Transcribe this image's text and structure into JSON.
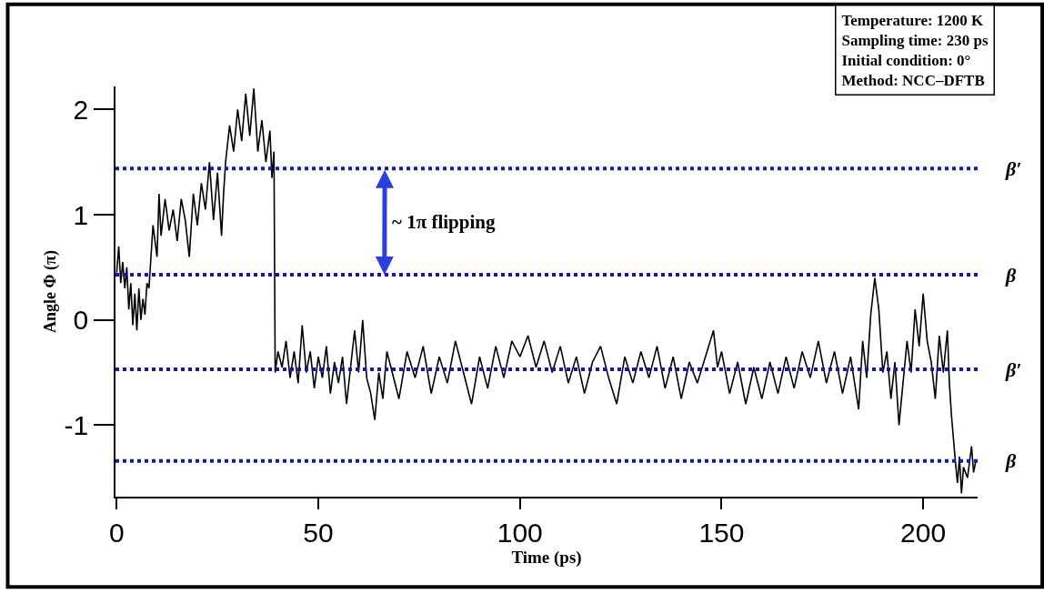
{
  "chart_data": {
    "type": "line",
    "xlabel": "Time (ps)",
    "ylabel": "Angle Φ (π)",
    "xlim": [
      -0.3,
      213.5
    ],
    "ylim": [
      -1.68,
      2.22
    ],
    "xticks": [
      0,
      50,
      100,
      150,
      200
    ],
    "yticks": [
      -1,
      0,
      1,
      2
    ],
    "marker": "none",
    "line_style": "solid",
    "series": [
      {
        "color": "#000000",
        "x": [
          0,
          0.5,
          1,
          1.5,
          2,
          2.5,
          3,
          3.5,
          4,
          4.5,
          5,
          5.5,
          6,
          6.5,
          7,
          7.5,
          8,
          9,
          10,
          10.5,
          11,
          12,
          13,
          14,
          15,
          16,
          17,
          18,
          19,
          20,
          21,
          22,
          23,
          24,
          25,
          26,
          26.5,
          27,
          28,
          29,
          30,
          31,
          32,
          33,
          34,
          35,
          36,
          37,
          38,
          38.5,
          39,
          39.3,
          40,
          41,
          42,
          43,
          44,
          45,
          46,
          47,
          48,
          49,
          50,
          51,
          52,
          53,
          54,
          55,
          56,
          57,
          58,
          59,
          60,
          61,
          62,
          63,
          64,
          65,
          66,
          67,
          68,
          70,
          72,
          74,
          76,
          78,
          80,
          82,
          84,
          86,
          88,
          90,
          92,
          94,
          96,
          98,
          100,
          102,
          104,
          106,
          108,
          110,
          112,
          114,
          116,
          118,
          120,
          122,
          124,
          126,
          128,
          130,
          132,
          134,
          136,
          138,
          140,
          142,
          144,
          146,
          148,
          149,
          150,
          152,
          154,
          156,
          158,
          160,
          162,
          164,
          166,
          168,
          170,
          172,
          174,
          176,
          178,
          180,
          182,
          184,
          185,
          186,
          187,
          188,
          189,
          190,
          191,
          192,
          193,
          194,
          195,
          196,
          197,
          198,
          199,
          200,
          201,
          202,
          203,
          204,
          205,
          206,
          206.5,
          207,
          208,
          208.5,
          209,
          209.5,
          210,
          211,
          212,
          212.5,
          213
        ],
        "values": [
          0.45,
          0.7,
          0.35,
          0.55,
          0.3,
          0.5,
          0.1,
          0.35,
          -0.05,
          0.25,
          -0.1,
          0.3,
          0.0,
          0.2,
          0.05,
          0.35,
          0.3,
          0.9,
          0.6,
          1.2,
          0.8,
          1.15,
          0.85,
          1.05,
          0.75,
          1.15,
          0.95,
          0.6,
          1.2,
          0.9,
          1.3,
          1.05,
          1.5,
          0.95,
          1.4,
          0.8,
          1.2,
          1.5,
          1.85,
          1.6,
          2.0,
          1.7,
          2.15,
          1.75,
          2.2,
          1.6,
          1.9,
          1.5,
          1.8,
          1.35,
          1.6,
          -0.5,
          -0.3,
          -0.45,
          -0.2,
          -0.55,
          -0.3,
          -0.6,
          -0.05,
          -0.5,
          -0.3,
          -0.65,
          -0.35,
          -0.55,
          -0.25,
          -0.7,
          -0.4,
          -0.6,
          -0.35,
          -0.8,
          -0.45,
          -0.1,
          -0.5,
          0.0,
          -0.55,
          -0.7,
          -0.95,
          -0.5,
          -0.75,
          -0.3,
          -0.45,
          -0.75,
          -0.3,
          -0.55,
          -0.25,
          -0.7,
          -0.35,
          -0.6,
          -0.2,
          -0.5,
          -0.8,
          -0.35,
          -0.65,
          -0.25,
          -0.55,
          -0.2,
          -0.35,
          -0.15,
          -0.45,
          -0.2,
          -0.5,
          -0.25,
          -0.6,
          -0.35,
          -0.7,
          -0.4,
          -0.25,
          -0.55,
          -0.8,
          -0.35,
          -0.6,
          -0.3,
          -0.55,
          -0.25,
          -0.65,
          -0.35,
          -0.75,
          -0.4,
          -0.6,
          -0.35,
          -0.1,
          -0.45,
          -0.3,
          -0.7,
          -0.4,
          -0.8,
          -0.45,
          -0.75,
          -0.4,
          -0.7,
          -0.35,
          -0.65,
          -0.3,
          -0.55,
          -0.2,
          -0.6,
          -0.3,
          -0.7,
          -0.35,
          -0.85,
          -0.2,
          -0.55,
          0.05,
          0.4,
          0.1,
          -0.5,
          -0.3,
          -0.75,
          -0.4,
          -1.0,
          -0.6,
          -0.2,
          -0.5,
          0.1,
          -0.25,
          0.25,
          -0.2,
          -0.4,
          -0.75,
          -0.15,
          -0.5,
          -0.1,
          -0.6,
          -0.9,
          -1.35,
          -1.55,
          -1.3,
          -1.65,
          -1.4,
          -1.5,
          -1.2,
          -1.45,
          -1.35
        ]
      }
    ],
    "ref_lines": [
      {
        "axis": "y",
        "value": 1.44,
        "label": "β′",
        "color": "#1414c8",
        "line_style": "dotted"
      },
      {
        "axis": "y",
        "value": 0.43,
        "label": "β",
        "color": "#1414c8",
        "line_style": "dotted"
      },
      {
        "axis": "y",
        "value": -0.47,
        "label": "β′",
        "color": "#1414c8",
        "line_style": "dotted"
      },
      {
        "axis": "y",
        "value": -1.34,
        "label": "β",
        "color": "#1414c8",
        "line_style": "dotted"
      }
    ],
    "annotations": [
      "~ 1π flipping",
      "Temperature: 1200 K",
      "Sampling time: 230 ps",
      "Initial condition: 0°",
      "Method: NCC–DFTB"
    ]
  }
}
